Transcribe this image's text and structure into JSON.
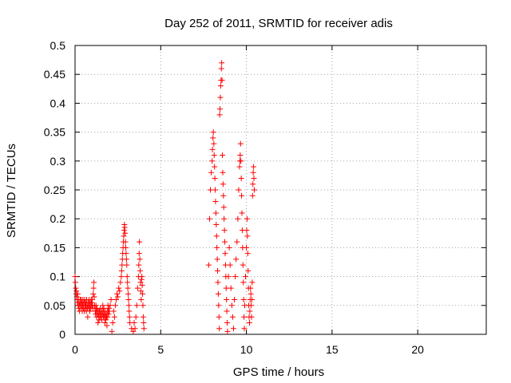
{
  "chart_data": {
    "type": "scatter",
    "title": "Day 252 of 2011, SRMTID for receiver adis",
    "xlabel": "GPS time / hours",
    "ylabel": "SRMTID / TECUs",
    "xlim": [
      0,
      24
    ],
    "ylim": [
      0,
      0.5
    ],
    "xticks": [
      0,
      5,
      10,
      15,
      20
    ],
    "yticks": [
      0,
      0.05,
      0.1,
      0.15,
      0.2,
      0.25,
      0.3,
      0.35,
      0.4,
      0.45,
      0.5
    ],
    "xtick_labels": [
      "0",
      "5",
      "10",
      "15",
      "20"
    ],
    "ytick_labels": [
      "0",
      "0.05",
      "0.1",
      "0.15",
      "0.2",
      "0.25",
      "0.3",
      "0.35",
      "0.4",
      "0.45",
      "0.5"
    ],
    "grid": true,
    "marker": "plus",
    "color": "#ff0000",
    "series": [
      {
        "points": [
          [
            0.0,
            0.1
          ],
          [
            0.02,
            0.09
          ],
          [
            0.04,
            0.08
          ],
          [
            0.06,
            0.07
          ],
          [
            0.08,
            0.075
          ],
          [
            0.1,
            0.065
          ],
          [
            0.12,
            0.06
          ],
          [
            0.14,
            0.055
          ],
          [
            0.16,
            0.07
          ],
          [
            0.18,
            0.05
          ],
          [
            0.2,
            0.06
          ],
          [
            0.22,
            0.045
          ],
          [
            0.24,
            0.05
          ],
          [
            0.26,
            0.04
          ],
          [
            0.28,
            0.055
          ],
          [
            0.3,
            0.06
          ],
          [
            0.32,
            0.05
          ],
          [
            0.34,
            0.045
          ],
          [
            0.36,
            0.06
          ],
          [
            0.38,
            0.05
          ],
          [
            0.4,
            0.055
          ],
          [
            0.42,
            0.04
          ],
          [
            0.44,
            0.05
          ],
          [
            0.46,
            0.06
          ],
          [
            0.48,
            0.045
          ],
          [
            0.5,
            0.05
          ],
          [
            0.52,
            0.055
          ],
          [
            0.54,
            0.04
          ],
          [
            0.56,
            0.06
          ],
          [
            0.58,
            0.05
          ],
          [
            0.6,
            0.045
          ],
          [
            0.62,
            0.055
          ],
          [
            0.64,
            0.05
          ],
          [
            0.66,
            0.04
          ],
          [
            0.68,
            0.06
          ],
          [
            0.7,
            0.05
          ],
          [
            0.72,
            0.045
          ],
          [
            0.74,
            0.03
          ],
          [
            0.76,
            0.055
          ],
          [
            0.78,
            0.05
          ],
          [
            0.8,
            0.045
          ],
          [
            0.82,
            0.06
          ],
          [
            0.84,
            0.05
          ],
          [
            0.86,
            0.04
          ],
          [
            0.88,
            0.055
          ],
          [
            0.9,
            0.05
          ],
          [
            0.92,
            0.045
          ],
          [
            0.94,
            0.06
          ],
          [
            0.96,
            0.055
          ],
          [
            0.98,
            0.05
          ],
          [
            1.0,
            0.06
          ],
          [
            1.02,
            0.05
          ],
          [
            1.04,
            0.045
          ],
          [
            1.06,
            0.07
          ],
          [
            1.08,
            0.08
          ],
          [
            1.1,
            0.09
          ],
          [
            1.12,
            0.065
          ],
          [
            1.14,
            0.05
          ],
          [
            1.16,
            0.045
          ],
          [
            1.18,
            0.04
          ],
          [
            1.2,
            0.035
          ],
          [
            1.22,
            0.05
          ],
          [
            1.24,
            0.04
          ],
          [
            1.26,
            0.03
          ],
          [
            1.28,
            0.045
          ],
          [
            1.3,
            0.04
          ],
          [
            1.32,
            0.035
          ],
          [
            1.34,
            0.02
          ],
          [
            1.36,
            0.04
          ],
          [
            1.38,
            0.03
          ],
          [
            1.4,
            0.025
          ],
          [
            1.42,
            0.04
          ],
          [
            1.44,
            0.035
          ],
          [
            1.46,
            0.03
          ],
          [
            1.48,
            0.045
          ],
          [
            1.5,
            0.04
          ],
          [
            1.52,
            0.035
          ],
          [
            1.54,
            0.03
          ],
          [
            1.56,
            0.025
          ],
          [
            1.58,
            0.04
          ],
          [
            1.6,
            0.035
          ],
          [
            1.62,
            0.05
          ],
          [
            1.64,
            0.04
          ],
          [
            1.66,
            0.03
          ],
          [
            1.68,
            0.045
          ],
          [
            1.7,
            0.035
          ],
          [
            1.72,
            0.03
          ],
          [
            1.74,
            0.02
          ],
          [
            1.76,
            0.04
          ],
          [
            1.78,
            0.03
          ],
          [
            1.8,
            0.025
          ],
          [
            1.82,
            0.035
          ],
          [
            1.84,
            0.03
          ],
          [
            1.86,
            0.015
          ],
          [
            1.88,
            0.04
          ],
          [
            1.9,
            0.03
          ],
          [
            1.92,
            0.05
          ],
          [
            1.94,
            0.04
          ],
          [
            1.96,
            0.035
          ],
          [
            1.98,
            0.045
          ],
          [
            2.0,
            0.04
          ],
          [
            2.05,
            0.05
          ],
          [
            2.1,
            0.06
          ],
          [
            2.15,
            0.005
          ],
          [
            2.2,
            0.02
          ],
          [
            2.25,
            0.04
          ],
          [
            2.3,
            0.03
          ],
          [
            2.35,
            0.05
          ],
          [
            2.4,
            0.06
          ],
          [
            2.45,
            0.07
          ],
          [
            2.5,
            0.065
          ],
          [
            2.55,
            0.08
          ],
          [
            2.6,
            0.075
          ],
          [
            2.65,
            0.09
          ],
          [
            2.7,
            0.1
          ],
          [
            2.72,
            0.11
          ],
          [
            2.74,
            0.12
          ],
          [
            2.76,
            0.13
          ],
          [
            2.78,
            0.14
          ],
          [
            2.8,
            0.15
          ],
          [
            2.82,
            0.16
          ],
          [
            2.84,
            0.17
          ],
          [
            2.86,
            0.18
          ],
          [
            2.88,
            0.19
          ],
          [
            2.9,
            0.185
          ],
          [
            2.92,
            0.175
          ],
          [
            2.94,
            0.16
          ],
          [
            2.96,
            0.15
          ],
          [
            2.98,
            0.14
          ],
          [
            3.0,
            0.13
          ],
          [
            3.02,
            0.12
          ],
          [
            3.04,
            0.1
          ],
          [
            3.06,
            0.09
          ],
          [
            3.08,
            0.08
          ],
          [
            3.1,
            0.07
          ],
          [
            3.12,
            0.06
          ],
          [
            3.14,
            0.05
          ],
          [
            3.16,
            0.04
          ],
          [
            3.18,
            0.03
          ],
          [
            3.2,
            0.02
          ],
          [
            3.3,
            0.01
          ],
          [
            3.4,
            0.005
          ],
          [
            3.45,
            0.02
          ],
          [
            3.5,
            0.01
          ],
          [
            3.55,
            0.03
          ],
          [
            3.6,
            0.05
          ],
          [
            3.65,
            0.08
          ],
          [
            3.7,
            0.1
          ],
          [
            3.72,
            0.12
          ],
          [
            3.74,
            0.14
          ],
          [
            3.76,
            0.16
          ],
          [
            3.78,
            0.13
          ],
          [
            3.8,
            0.11
          ],
          [
            3.82,
            0.09
          ],
          [
            3.84,
            0.075
          ],
          [
            3.86,
            0.06
          ],
          [
            3.88,
            0.095
          ],
          [
            3.9,
            0.1
          ],
          [
            3.92,
            0.085
          ],
          [
            3.94,
            0.07
          ],
          [
            3.96,
            0.05
          ],
          [
            3.98,
            0.03
          ],
          [
            4.0,
            0.02
          ],
          [
            4.02,
            0.01
          ],
          [
            7.8,
            0.12
          ],
          [
            7.85,
            0.2
          ],
          [
            7.9,
            0.25
          ],
          [
            7.95,
            0.28
          ],
          [
            8.0,
            0.3
          ],
          [
            8.02,
            0.32
          ],
          [
            8.05,
            0.34
          ],
          [
            8.07,
            0.35
          ],
          [
            8.1,
            0.33
          ],
          [
            8.12,
            0.31
          ],
          [
            8.14,
            0.29
          ],
          [
            8.16,
            0.27
          ],
          [
            8.18,
            0.25
          ],
          [
            8.2,
            0.23
          ],
          [
            8.22,
            0.21
          ],
          [
            8.24,
            0.19
          ],
          [
            8.26,
            0.17
          ],
          [
            8.28,
            0.15
          ],
          [
            8.3,
            0.13
          ],
          [
            8.32,
            0.11
          ],
          [
            8.34,
            0.09
          ],
          [
            8.36,
            0.07
          ],
          [
            8.38,
            0.05
          ],
          [
            8.4,
            0.03
          ],
          [
            8.42,
            0.01
          ],
          [
            8.44,
            0.38
          ],
          [
            8.46,
            0.39
          ],
          [
            8.48,
            0.41
          ],
          [
            8.5,
            0.43
          ],
          [
            8.52,
            0.44
          ],
          [
            8.54,
            0.46
          ],
          [
            8.56,
            0.47
          ],
          [
            8.58,
            0.44
          ],
          [
            8.6,
            0.31
          ],
          [
            8.62,
            0.28
          ],
          [
            8.64,
            0.26
          ],
          [
            8.66,
            0.24
          ],
          [
            8.68,
            0.22
          ],
          [
            8.7,
            0.2
          ],
          [
            8.72,
            0.18
          ],
          [
            8.74,
            0.16
          ],
          [
            8.76,
            0.14
          ],
          [
            8.78,
            0.12
          ],
          [
            8.8,
            0.1
          ],
          [
            8.82,
            0.08
          ],
          [
            8.84,
            0.06
          ],
          [
            8.86,
            0.04
          ],
          [
            8.88,
            0.02
          ],
          [
            8.9,
            0.005
          ],
          [
            8.95,
            0.1
          ],
          [
            9.0,
            0.15
          ],
          [
            9.05,
            0.12
          ],
          [
            9.1,
            0.08
          ],
          [
            9.15,
            0.05
          ],
          [
            9.2,
            0.03
          ],
          [
            9.25,
            0.01
          ],
          [
            9.3,
            0.06
          ],
          [
            9.35,
            0.1
          ],
          [
            9.4,
            0.13
          ],
          [
            9.45,
            0.16
          ],
          [
            9.5,
            0.2
          ],
          [
            9.55,
            0.25
          ],
          [
            9.6,
            0.29
          ],
          [
            9.62,
            0.3
          ],
          [
            9.64,
            0.31
          ],
          [
            9.66,
            0.33
          ],
          [
            9.68,
            0.3
          ],
          [
            9.7,
            0.27
          ],
          [
            9.72,
            0.24
          ],
          [
            9.74,
            0.21
          ],
          [
            9.76,
            0.18
          ],
          [
            9.78,
            0.15
          ],
          [
            9.8,
            0.12
          ],
          [
            9.82,
            0.09
          ],
          [
            9.84,
            0.06
          ],
          [
            9.86,
            0.03
          ],
          [
            9.88,
            0.01
          ],
          [
            9.9,
            0.05
          ],
          [
            9.95,
            0.1
          ],
          [
            10.0,
            0.15
          ],
          [
            10.02,
            0.18
          ],
          [
            10.04,
            0.2
          ],
          [
            10.06,
            0.17
          ],
          [
            10.08,
            0.14
          ],
          [
            10.1,
            0.11
          ],
          [
            10.12,
            0.08
          ],
          [
            10.14,
            0.05
          ],
          [
            10.16,
            0.03
          ],
          [
            10.18,
            0.02
          ],
          [
            10.2,
            0.04
          ],
          [
            10.22,
            0.06
          ],
          [
            10.24,
            0.08
          ],
          [
            10.26,
            0.07
          ],
          [
            10.28,
            0.05
          ],
          [
            10.3,
            0.03
          ],
          [
            10.32,
            0.06
          ],
          [
            10.34,
            0.09
          ],
          [
            10.36,
            0.24
          ],
          [
            10.38,
            0.26
          ],
          [
            10.4,
            0.28
          ],
          [
            10.42,
            0.29
          ],
          [
            10.44,
            0.27
          ],
          [
            10.46,
            0.25
          ]
        ]
      }
    ]
  }
}
